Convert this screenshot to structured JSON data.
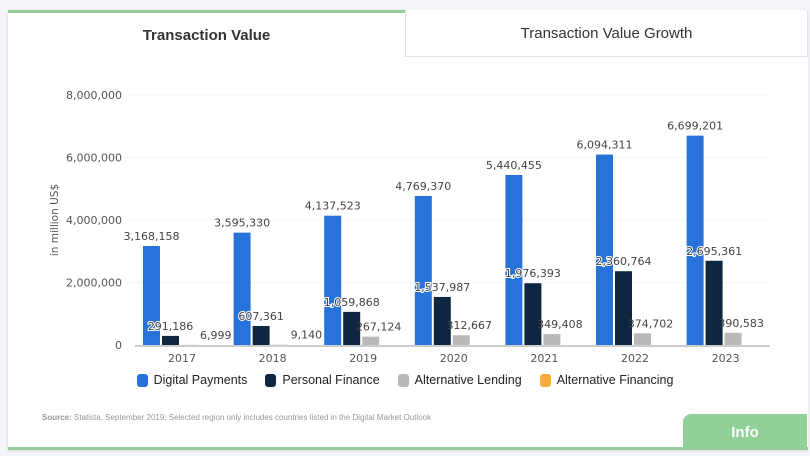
{
  "tabs": [
    {
      "label": "Transaction Value",
      "active": true
    },
    {
      "label": "Transaction Value Growth",
      "active": false
    }
  ],
  "chart_data": {
    "type": "bar",
    "ylabel": "in million US$",
    "ylim": [
      0,
      8000000
    ],
    "yticks": [
      "0",
      "2,000,000",
      "4,000,000",
      "6,000,000",
      "8,000,000"
    ],
    "grid": true,
    "legend_position": "bottom",
    "categories": [
      "2017",
      "2018",
      "2019",
      "2020",
      "2021",
      "2022",
      "2023"
    ],
    "series": [
      {
        "name": "Digital Payments",
        "color": "#2873d9",
        "values": [
          3168158,
          3595330,
          4137523,
          4769370,
          5440455,
          6094311,
          6699201
        ],
        "labels": [
          "3,168,158",
          "3,595,330",
          "4,137,523",
          "4,769,370",
          "5,440,455",
          "6,094,311",
          "6,699,201"
        ]
      },
      {
        "name": "Personal Finance",
        "color": "#0e2640",
        "values": [
          291186,
          607361,
          1059868,
          1537987,
          1976393,
          2360764,
          2695361
        ],
        "labels": [
          "291,186",
          "607,361",
          "1,059,868",
          "1,537,987",
          "1,976,393",
          "2,360,764",
          "2,695,361"
        ]
      },
      {
        "name": "Alternative Lending",
        "color": "#b9b9b9",
        "values": [
          6999,
          9140,
          267124,
          312667,
          349408,
          374702,
          390583
        ],
        "labels": [
          "6,999",
          "9,140",
          "267,124",
          "312,667",
          "349,408",
          "374,702",
          "390,583"
        ]
      },
      {
        "name": "Alternative Financing",
        "color": "#f5ae3c",
        "values": [
          null,
          null,
          null,
          null,
          null,
          null,
          null
        ],
        "labels": []
      }
    ]
  },
  "source": {
    "prefix": "Source:",
    "text": " Statista, September 2019; Selected region only includes countries listed in the Digital Market Outlook"
  },
  "info_button": "Info"
}
